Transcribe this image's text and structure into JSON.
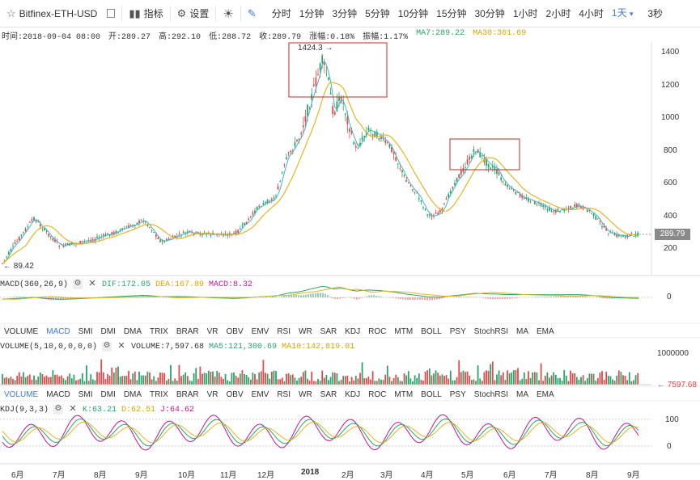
{
  "toolbar": {
    "symbol": "Bitfinex-ETH-USD",
    "indicators_label": "指标",
    "settings_label": "设置",
    "periods": [
      "分时",
      "1分钟",
      "3分钟",
      "5分钟",
      "10分钟",
      "15分钟",
      "30分钟",
      "1小时",
      "2小时",
      "4小时"
    ],
    "active_period": "1天",
    "seconds": "3秒"
  },
  "info": {
    "time": "时间:2018-09-04 08:00",
    "open": "开:289.27",
    "high": "高:292.10",
    "low": "低:288.72",
    "close": "收:289.79",
    "change": "涨幅:0.18%",
    "amplitude": "振幅:1.17%",
    "ma7": "MA7:289.22",
    "ma30": "MA30:301.69"
  },
  "price_axis": {
    "ticks": [
      "1400",
      "1200",
      "1000",
      "800",
      "600",
      "400",
      "200"
    ],
    "current": "289.79"
  },
  "annotations": {
    "high_label": "1424.3",
    "low_label": "89.42"
  },
  "macd": {
    "title": "MACD(360,26,9)",
    "dif": "DIF:172.05",
    "dea": "DEA:167.89",
    "macd": "MACD:8.32",
    "axis_zero": "0"
  },
  "volume": {
    "title": "VOLUME(5,10,0,0,0,0)",
    "value": "VOLUME:7,597.68",
    "ma5": "MA5:121,300.69",
    "ma10": "MA10:142,819.01",
    "axis_top": "1000000",
    "current": "7597.68"
  },
  "kdj": {
    "title": "KDJ(9,3,3)",
    "k": "K:63.21",
    "d": "D:62.51",
    "j": "J:64.62",
    "axis_100": "100",
    "axis_0": "0"
  },
  "indicator_tabs": [
    "VOLUME",
    "MACD",
    "SMI",
    "DMI",
    "DMA",
    "TRIX",
    "BRAR",
    "VR",
    "OBV",
    "EMV",
    "RSI",
    "WR",
    "SAR",
    "KDJ",
    "ROC",
    "MTM",
    "BOLL",
    "PSY",
    "StochRSI",
    "MA",
    "EMA"
  ],
  "months": [
    "6月",
    "7月",
    "8月",
    "9月",
    "10月",
    "11月",
    "12月",
    "2018",
    "2月",
    "3月",
    "4月",
    "5月",
    "6月",
    "7月",
    "8月",
    "9月"
  ],
  "colors": {
    "up": "#2aa36b",
    "down": "#e04b4b",
    "ma7": "#3fb6c8",
    "ma30": "#e3b623",
    "accent": "#3e7bd7",
    "box": "#c62828"
  }
}
